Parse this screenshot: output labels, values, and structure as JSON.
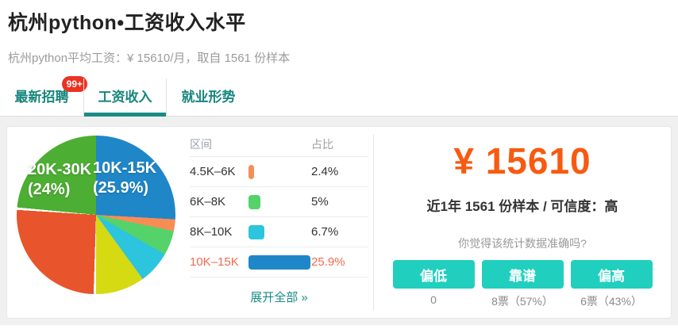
{
  "page": {
    "title": "杭州python•工资收入水平",
    "subtitle": "杭州python平均工资：¥ 15610/月，取自 1561 份样本"
  },
  "tabs": [
    {
      "label": "最新招聘",
      "badge": "99+",
      "active": false
    },
    {
      "label": "工资收入",
      "badge": null,
      "active": true
    },
    {
      "label": "就业形势",
      "badge": null,
      "active": false
    }
  ],
  "chart_data": {
    "type": "pie",
    "unit": "percent",
    "slices": [
      {
        "label": "10K-15K",
        "value": 25.9,
        "color": "#1f86c8",
        "gap_before": false
      },
      {
        "label": "4.5K-6K",
        "value": 2.4,
        "color": "#f78d55",
        "gap_before": false
      },
      {
        "label": "6K-8K",
        "value": 5,
        "color": "#54d36a",
        "gap_before": false
      },
      {
        "label": "8K-10K",
        "value": 6.7,
        "color": "#2cc5dd",
        "gap_before": false
      },
      {
        "label": "",
        "value": 10,
        "color": "#d5da13",
        "gap_before": false
      },
      {
        "label": "",
        "value": 26,
        "color": "#e8542b",
        "gap_before": true
      },
      {
        "label": "20K-30K",
        "value": 24,
        "color": "#4cae32",
        "gap_before": true
      }
    ],
    "pie_labels": [
      {
        "line1": "20K-30K",
        "line2": "(24%)"
      },
      {
        "line1": "10K-15K",
        "line2": "(25.9%)"
      }
    ]
  },
  "table": {
    "headers": {
      "range": "区间",
      "pct": "占比"
    },
    "rows": [
      {
        "range": "4.5K–6K",
        "value": 2.4,
        "pct": "2.4%",
        "color": "#f78d55",
        "highlight": false
      },
      {
        "range": "6K–8K",
        "value": 5,
        "pct": "5%",
        "color": "#54d36a",
        "highlight": false
      },
      {
        "range": "8K–10K",
        "value": 6.7,
        "pct": "6.7%",
        "color": "#2cc5dd",
        "highlight": false
      },
      {
        "range": "10K–15K",
        "value": 25.9,
        "pct": "25.9%",
        "color": "#1f86c8",
        "highlight": true
      }
    ],
    "expand_label": "展开全部 »"
  },
  "salary_panel": {
    "amount": "¥ 15610",
    "sample_info": "近1年 1561 份样本 / 可信度：高",
    "vote_question": "你觉得该统计数据准确吗?",
    "votes": [
      {
        "button": "偏低",
        "result": "0"
      },
      {
        "button": "靠谱",
        "result": "8票（57%）"
      },
      {
        "button": "偏高",
        "result": "6票（43%）"
      }
    ]
  },
  "colors": {
    "accent_teal": "#17867d",
    "tab_underline": "#1a8c85",
    "button_teal": "#21cfbf",
    "amount_orange": "#f85a11",
    "highlight_row": "#f4694c",
    "badge_red": "#eb3323"
  }
}
